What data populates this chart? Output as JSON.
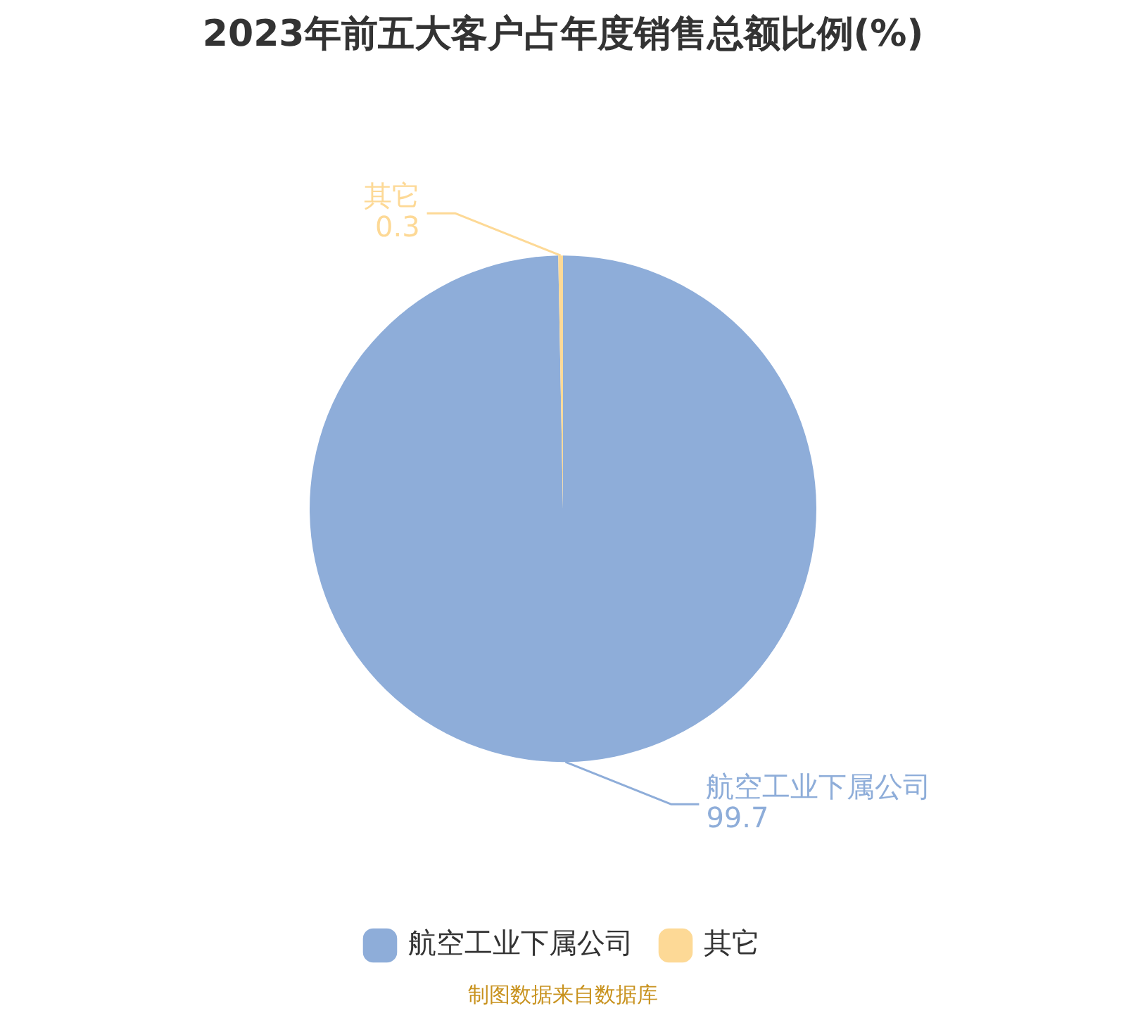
{
  "chart_data": {
    "type": "pie",
    "title": "2023年前五大客户占年度销售总额比例(%)",
    "categories": [
      "航空工业下属公司",
      "其它"
    ],
    "values": [
      99.7,
      0.3
    ],
    "colors": [
      "#8eadd9",
      "#fdd996"
    ],
    "data_labels": true,
    "legend": "bottom",
    "annotations": [
      "制图数据来自数据库"
    ]
  }
}
